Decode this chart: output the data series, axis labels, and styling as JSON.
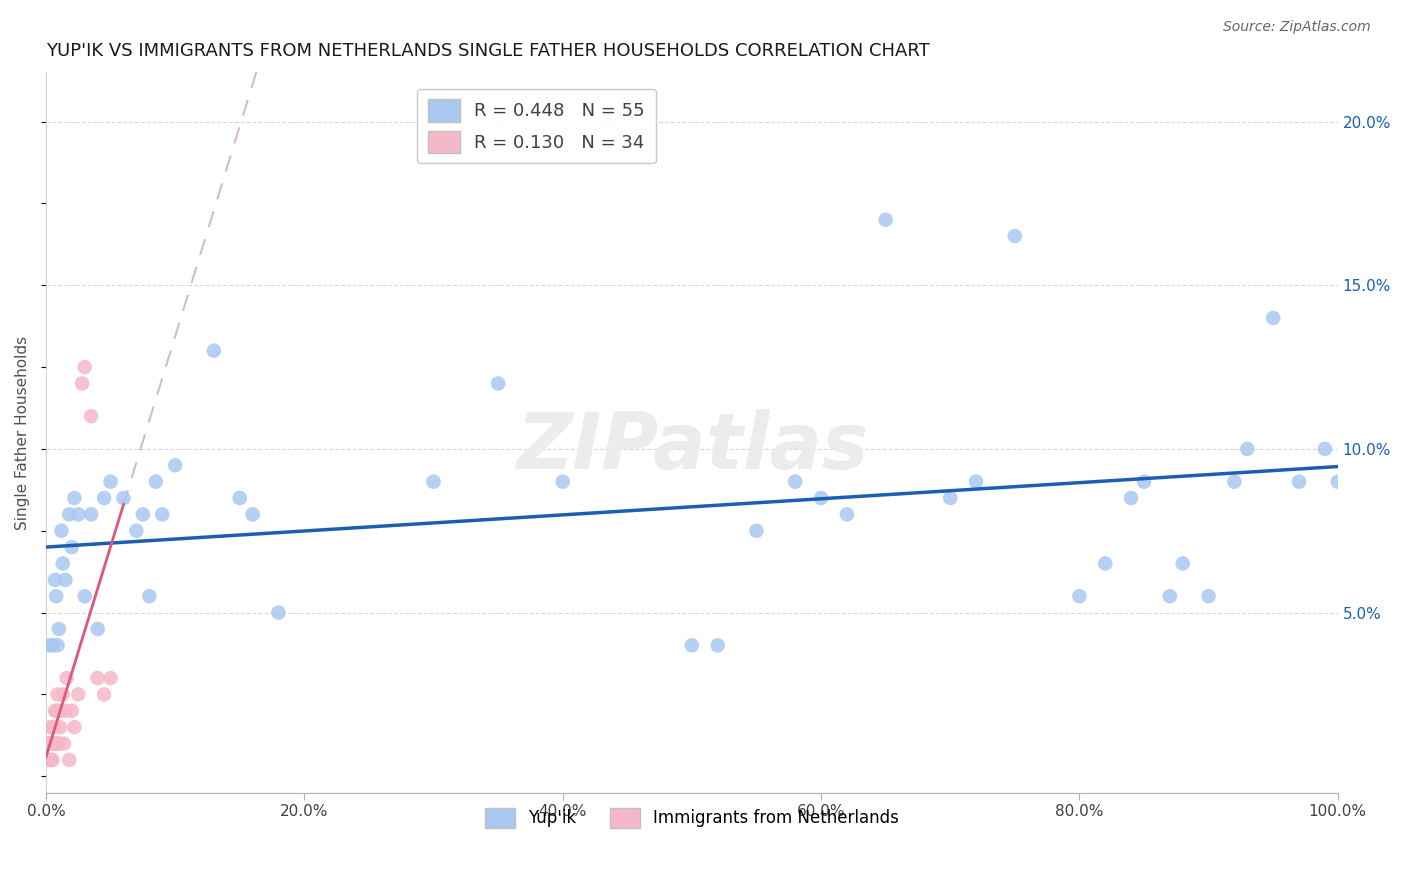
{
  "title": "YUP'IK VS IMMIGRANTS FROM NETHERLANDS SINGLE FATHER HOUSEHOLDS CORRELATION CHART",
  "source": "Source: ZipAtlas.com",
  "ylabel": "Single Father Households",
  "watermark": "ZIPatlas",
  "legend_blue_r": "0.448",
  "legend_blue_n": "55",
  "legend_pink_r": "0.130",
  "legend_pink_n": "34",
  "legend_label_blue": "Yup'ik",
  "legend_label_pink": "Immigrants from Netherlands",
  "blue_color": "#a8c8f0",
  "pink_color": "#f5b8c8",
  "trendline_blue_color": "#1a5fb4",
  "trendline_pink_color": "#e05878",
  "xlim": [
    0,
    1.0
  ],
  "ylim": [
    -0.005,
    0.215
  ],
  "xticks": [
    0.0,
    0.2,
    0.4,
    0.6,
    0.8,
    1.0
  ],
  "yticks": [
    0.0,
    0.05,
    0.1,
    0.15,
    0.2
  ],
  "xtick_labels": [
    "0.0%",
    "20.0%",
    "40.0%",
    "60.0%",
    "80.0%",
    "100.0%"
  ],
  "ytick_labels_right": [
    "",
    "5.0%",
    "10.0%",
    "15.0%",
    "20.0%"
  ],
  "blue_x": [
    0.003,
    0.005,
    0.007,
    0.008,
    0.009,
    0.01,
    0.012,
    0.013,
    0.015,
    0.018,
    0.02,
    0.022,
    0.025,
    0.03,
    0.035,
    0.04,
    0.045,
    0.05,
    0.06,
    0.07,
    0.075,
    0.08,
    0.085,
    0.09,
    0.1,
    0.13,
    0.15,
    0.16,
    0.18,
    0.3,
    0.35,
    0.4,
    0.5,
    0.52,
    0.55,
    0.58,
    0.6,
    0.62,
    0.65,
    0.7,
    0.72,
    0.75,
    0.8,
    0.82,
    0.84,
    0.85,
    0.87,
    0.88,
    0.9,
    0.92,
    0.93,
    0.95,
    0.97,
    0.99,
    1.0
  ],
  "blue_y": [
    0.04,
    0.04,
    0.06,
    0.055,
    0.04,
    0.045,
    0.075,
    0.065,
    0.06,
    0.08,
    0.07,
    0.085,
    0.08,
    0.055,
    0.08,
    0.045,
    0.085,
    0.09,
    0.085,
    0.075,
    0.08,
    0.055,
    0.09,
    0.08,
    0.095,
    0.13,
    0.085,
    0.08,
    0.05,
    0.09,
    0.12,
    0.09,
    0.04,
    0.04,
    0.075,
    0.09,
    0.085,
    0.08,
    0.17,
    0.085,
    0.09,
    0.165,
    0.055,
    0.065,
    0.085,
    0.09,
    0.055,
    0.065,
    0.055,
    0.09,
    0.1,
    0.14,
    0.09,
    0.1,
    0.09
  ],
  "pink_x": [
    0.002,
    0.003,
    0.003,
    0.004,
    0.004,
    0.005,
    0.005,
    0.005,
    0.006,
    0.006,
    0.007,
    0.007,
    0.008,
    0.008,
    0.009,
    0.009,
    0.01,
    0.01,
    0.011,
    0.012,
    0.013,
    0.014,
    0.015,
    0.016,
    0.018,
    0.02,
    0.022,
    0.025,
    0.028,
    0.03,
    0.035,
    0.04,
    0.045,
    0.05
  ],
  "pink_y": [
    0.01,
    0.005,
    0.01,
    0.005,
    0.015,
    0.01,
    0.005,
    0.015,
    0.01,
    0.015,
    0.01,
    0.02,
    0.01,
    0.02,
    0.01,
    0.025,
    0.01,
    0.02,
    0.015,
    0.02,
    0.025,
    0.01,
    0.02,
    0.03,
    0.005,
    0.02,
    0.015,
    0.025,
    0.12,
    0.125,
    0.11,
    0.03,
    0.025,
    0.03
  ]
}
